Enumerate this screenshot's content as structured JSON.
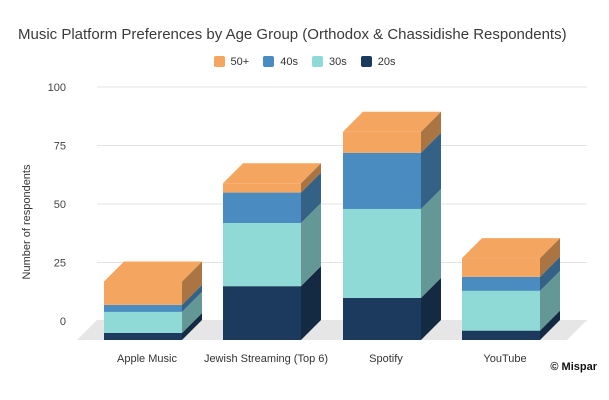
{
  "chart_data": {
    "type": "bar",
    "stacked": true,
    "title": "Music Platform Preferences by Age Group (Orthodox & Chassidishe Respondents)",
    "xlabel": "",
    "ylabel": "Number of respondents",
    "ylim": [
      0,
      100
    ],
    "yticks": [
      0,
      25,
      50,
      75,
      100
    ],
    "categories": [
      "Apple Music",
      "Jewish Streaming (Top 6)",
      "Spotify",
      "YouTube"
    ],
    "series": [
      {
        "name": "20s",
        "color": "#1c3a5e",
        "values": [
          3,
          23,
          18,
          4
        ]
      },
      {
        "name": "30s",
        "color": "#8fd9d6",
        "values": [
          9,
          27,
          38,
          17
        ]
      },
      {
        "name": "40s",
        "color": "#4a8bc0",
        "values": [
          3,
          13,
          24,
          6
        ]
      },
      {
        "name": "50+",
        "color": "#f4a660",
        "values": [
          10,
          4,
          9,
          8
        ]
      }
    ],
    "legend": {
      "position": "top-center",
      "order": [
        "50+",
        "40s",
        "30s",
        "20s"
      ]
    },
    "grid": true
  },
  "credit": "© Mispar"
}
